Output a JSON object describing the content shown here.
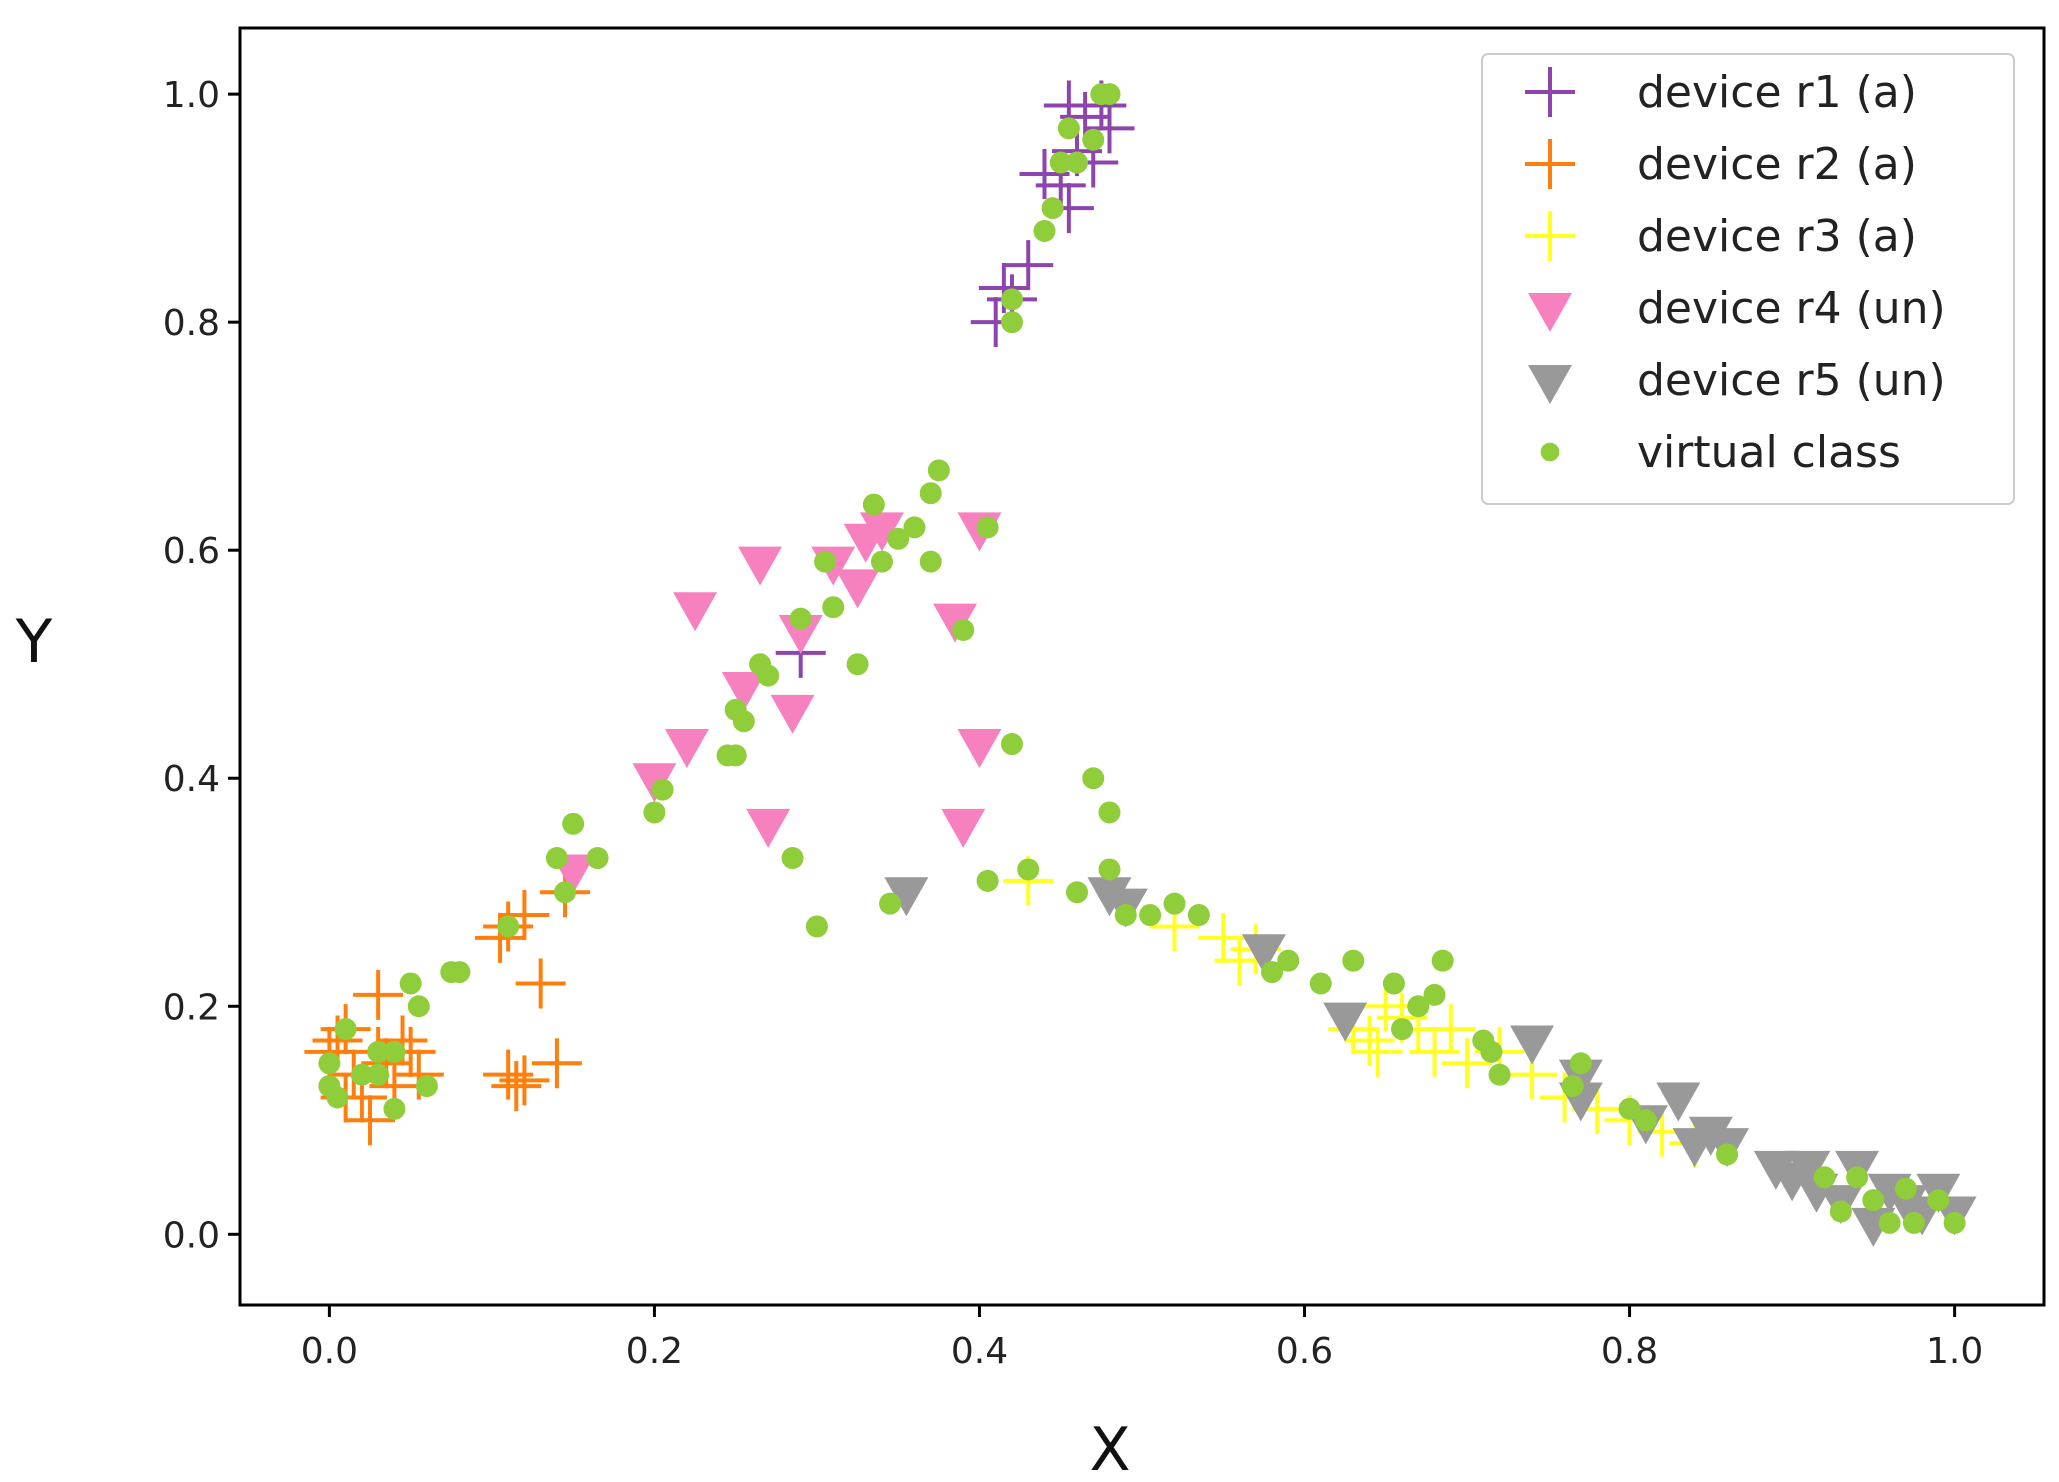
{
  "chart_data": {
    "type": "scatter",
    "title": "",
    "xlabel": "X",
    "ylabel": "Y",
    "xlim": [
      -0.055,
      1.055
    ],
    "ylim": [
      -0.062,
      1.058
    ],
    "xticks": [
      "0.0",
      "0.2",
      "0.4",
      "0.6",
      "0.8",
      "1.0"
    ],
    "yticks": [
      "0.0",
      "0.2",
      "0.4",
      "0.6",
      "0.8",
      "1.0"
    ],
    "legend_position": "top-right",
    "series": [
      {
        "name": "device r1 (a)",
        "marker": "plus",
        "color": "#8e44ad",
        "points": [
          [
            0.41,
            0.8
          ],
          [
            0.42,
            0.82
          ],
          [
            0.415,
            0.83
          ],
          [
            0.43,
            0.85
          ],
          [
            0.44,
            0.93
          ],
          [
            0.45,
            0.92
          ],
          [
            0.455,
            0.9
          ],
          [
            0.46,
            0.95
          ],
          [
            0.47,
            0.94
          ],
          [
            0.455,
            0.99
          ],
          [
            0.465,
            0.98
          ],
          [
            0.48,
            0.97
          ],
          [
            0.475,
            0.99
          ],
          [
            0.29,
            0.51
          ]
        ]
      },
      {
        "name": "device r2 (a)",
        "marker": "plus",
        "color": "#ff7f0e",
        "points": [
          [
            0.0,
            0.16
          ],
          [
            0.005,
            0.17
          ],
          [
            0.01,
            0.18
          ],
          [
            0.015,
            0.14
          ],
          [
            0.02,
            0.12
          ],
          [
            0.025,
            0.1
          ],
          [
            0.03,
            0.21
          ],
          [
            0.035,
            0.15
          ],
          [
            0.04,
            0.13
          ],
          [
            0.045,
            0.17
          ],
          [
            0.05,
            0.16
          ],
          [
            0.055,
            0.14
          ],
          [
            0.01,
            0.12
          ],
          [
            0.03,
            0.16
          ],
          [
            0.105,
            0.26
          ],
          [
            0.11,
            0.27
          ],
          [
            0.12,
            0.28
          ],
          [
            0.13,
            0.22
          ],
          [
            0.14,
            0.15
          ],
          [
            0.11,
            0.14
          ],
          [
            0.115,
            0.13
          ],
          [
            0.12,
            0.135
          ],
          [
            0.145,
            0.3
          ]
        ]
      },
      {
        "name": "device r3 (a)",
        "marker": "plus",
        "color": "#ffff22",
        "points": [
          [
            0.43,
            0.31
          ],
          [
            0.52,
            0.27
          ],
          [
            0.55,
            0.26
          ],
          [
            0.57,
            0.25
          ],
          [
            0.56,
            0.24
          ],
          [
            0.63,
            0.18
          ],
          [
            0.64,
            0.17
          ],
          [
            0.645,
            0.16
          ],
          [
            0.65,
            0.2
          ],
          [
            0.66,
            0.19
          ],
          [
            0.67,
            0.18
          ],
          [
            0.68,
            0.16
          ],
          [
            0.69,
            0.18
          ],
          [
            0.7,
            0.15
          ],
          [
            0.72,
            0.16
          ],
          [
            0.74,
            0.14
          ],
          [
            0.76,
            0.12
          ],
          [
            0.78,
            0.11
          ],
          [
            0.8,
            0.1
          ],
          [
            0.82,
            0.09
          ],
          [
            0.84,
            0.08
          ]
        ]
      },
      {
        "name": "device r4 (un)",
        "marker": "triangle_down",
        "color": "#f781bf",
        "points": [
          [
            0.15,
            0.32
          ],
          [
            0.2,
            0.4
          ],
          [
            0.22,
            0.43
          ],
          [
            0.225,
            0.55
          ],
          [
            0.255,
            0.48
          ],
          [
            0.265,
            0.59
          ],
          [
            0.27,
            0.36
          ],
          [
            0.285,
            0.46
          ],
          [
            0.29,
            0.53
          ],
          [
            0.31,
            0.59
          ],
          [
            0.325,
            0.57
          ],
          [
            0.33,
            0.61
          ],
          [
            0.34,
            0.62
          ],
          [
            0.385,
            0.54
          ],
          [
            0.39,
            0.36
          ],
          [
            0.4,
            0.43
          ],
          [
            0.4,
            0.62
          ]
        ]
      },
      {
        "name": "device r5 (un)",
        "marker": "triangle_down",
        "color": "#999999",
        "points": [
          [
            0.355,
            0.3
          ],
          [
            0.48,
            0.3
          ],
          [
            0.49,
            0.29
          ],
          [
            0.575,
            0.25
          ],
          [
            0.625,
            0.19
          ],
          [
            0.74,
            0.17
          ],
          [
            0.77,
            0.14
          ],
          [
            0.77,
            0.12
          ],
          [
            0.81,
            0.1
          ],
          [
            0.83,
            0.12
          ],
          [
            0.84,
            0.08
          ],
          [
            0.85,
            0.09
          ],
          [
            0.86,
            0.08
          ],
          [
            0.89,
            0.06
          ],
          [
            0.9,
            0.05
          ],
          [
            0.91,
            0.06
          ],
          [
            0.915,
            0.04
          ],
          [
            0.93,
            0.03
          ],
          [
            0.94,
            0.06
          ],
          [
            0.95,
            0.01
          ],
          [
            0.96,
            0.04
          ],
          [
            0.97,
            0.03
          ],
          [
            0.98,
            0.02
          ],
          [
            0.99,
            0.04
          ],
          [
            1.0,
            0.02
          ]
        ]
      },
      {
        "name": "virtual class",
        "marker": "circle",
        "color": "#8fce3a",
        "points": [
          [
            0.0,
            0.15
          ],
          [
            0.0,
            0.13
          ],
          [
            0.005,
            0.12
          ],
          [
            0.01,
            0.18
          ],
          [
            0.02,
            0.14
          ],
          [
            0.03,
            0.16
          ],
          [
            0.03,
            0.14
          ],
          [
            0.04,
            0.11
          ],
          [
            0.04,
            0.16
          ],
          [
            0.05,
            0.22
          ],
          [
            0.055,
            0.2
          ],
          [
            0.06,
            0.13
          ],
          [
            0.075,
            0.23
          ],
          [
            0.08,
            0.23
          ],
          [
            0.11,
            0.27
          ],
          [
            0.14,
            0.33
          ],
          [
            0.145,
            0.3
          ],
          [
            0.15,
            0.36
          ],
          [
            0.165,
            0.33
          ],
          [
            0.2,
            0.37
          ],
          [
            0.205,
            0.39
          ],
          [
            0.245,
            0.42
          ],
          [
            0.25,
            0.46
          ],
          [
            0.25,
            0.42
          ],
          [
            0.255,
            0.45
          ],
          [
            0.265,
            0.5
          ],
          [
            0.27,
            0.49
          ],
          [
            0.285,
            0.33
          ],
          [
            0.29,
            0.54
          ],
          [
            0.3,
            0.27
          ],
          [
            0.305,
            0.59
          ],
          [
            0.31,
            0.55
          ],
          [
            0.325,
            0.5
          ],
          [
            0.335,
            0.64
          ],
          [
            0.34,
            0.59
          ],
          [
            0.345,
            0.29
          ],
          [
            0.35,
            0.61
          ],
          [
            0.36,
            0.62
          ],
          [
            0.37,
            0.59
          ],
          [
            0.37,
            0.65
          ],
          [
            0.375,
            0.67
          ],
          [
            0.39,
            0.53
          ],
          [
            0.405,
            0.62
          ],
          [
            0.405,
            0.31
          ],
          [
            0.42,
            0.43
          ],
          [
            0.42,
            0.82
          ],
          [
            0.42,
            0.8
          ],
          [
            0.43,
            0.32
          ],
          [
            0.44,
            0.88
          ],
          [
            0.445,
            0.9
          ],
          [
            0.45,
            0.94
          ],
          [
            0.455,
            0.97
          ],
          [
            0.46,
            0.94
          ],
          [
            0.47,
            0.4
          ],
          [
            0.47,
            0.96
          ],
          [
            0.475,
            1.0
          ],
          [
            0.48,
            0.37
          ],
          [
            0.48,
            1.0
          ],
          [
            0.48,
            0.32
          ],
          [
            0.46,
            0.3
          ],
          [
            0.49,
            0.28
          ],
          [
            0.505,
            0.28
          ],
          [
            0.52,
            0.29
          ],
          [
            0.535,
            0.28
          ],
          [
            0.58,
            0.23
          ],
          [
            0.59,
            0.24
          ],
          [
            0.61,
            0.22
          ],
          [
            0.63,
            0.24
          ],
          [
            0.655,
            0.22
          ],
          [
            0.66,
            0.18
          ],
          [
            0.67,
            0.2
          ],
          [
            0.68,
            0.21
          ],
          [
            0.685,
            0.24
          ],
          [
            0.71,
            0.17
          ],
          [
            0.715,
            0.16
          ],
          [
            0.72,
            0.14
          ],
          [
            0.765,
            0.13
          ],
          [
            0.77,
            0.15
          ],
          [
            0.8,
            0.11
          ],
          [
            0.81,
            0.1
          ],
          [
            0.86,
            0.07
          ],
          [
            0.92,
            0.05
          ],
          [
            0.93,
            0.02
          ],
          [
            0.94,
            0.05
          ],
          [
            0.95,
            0.03
          ],
          [
            0.96,
            0.01
          ],
          [
            0.97,
            0.04
          ],
          [
            0.975,
            0.01
          ],
          [
            0.99,
            0.03
          ],
          [
            1.0,
            0.01
          ]
        ]
      }
    ]
  }
}
